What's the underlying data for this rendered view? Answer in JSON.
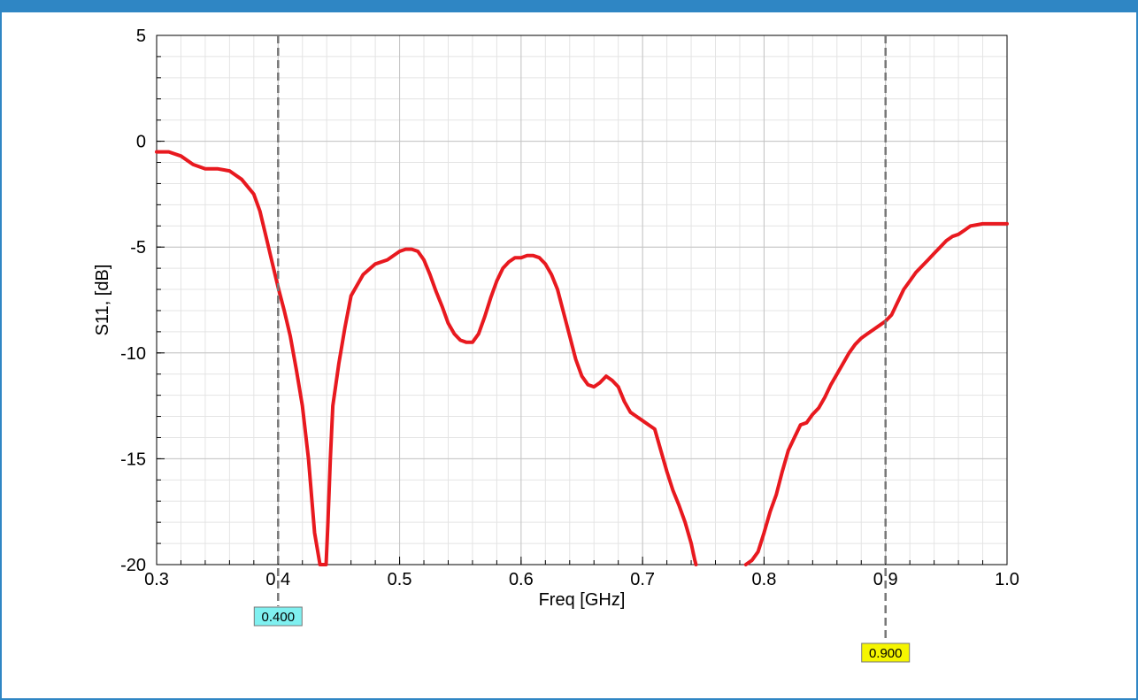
{
  "chart_data": {
    "type": "line",
    "title": "",
    "xlabel": "Freq [GHz]",
    "ylabel": "S11, [dB]",
    "xlim": [
      0.3,
      1.0
    ],
    "ylim": [
      -20,
      5
    ],
    "xticks": [
      "0.3",
      "0.4",
      "0.5",
      "0.6",
      "0.7",
      "0.8",
      "0.9",
      "1.0"
    ],
    "xtick_values": [
      0.3,
      0.4,
      0.5,
      0.6,
      0.7,
      0.8,
      0.9,
      1.0
    ],
    "yticks": [
      "5",
      "0",
      "-5",
      "-10",
      "-15",
      "-20"
    ],
    "ytick_values": [
      5,
      0,
      -5,
      -10,
      -15,
      -20
    ],
    "grid": true,
    "series": [
      {
        "color": "#e8191f",
        "x": [
          0.3,
          0.31,
          0.32,
          0.33,
          0.34,
          0.35,
          0.36,
          0.37,
          0.38,
          0.385,
          0.39,
          0.395,
          0.4,
          0.405,
          0.41,
          0.415,
          0.42,
          0.425,
          0.43,
          0.4345,
          0.4395,
          0.441,
          0.443,
          0.445,
          0.45,
          0.455,
          0.46,
          0.47,
          0.48,
          0.49,
          0.5,
          0.505,
          0.51,
          0.515,
          0.52,
          0.525,
          0.53,
          0.535,
          0.54,
          0.545,
          0.55,
          0.555,
          0.56,
          0.565,
          0.57,
          0.575,
          0.58,
          0.585,
          0.59,
          0.595,
          0.6,
          0.605,
          0.61,
          0.615,
          0.62,
          0.625,
          0.63,
          0.635,
          0.64,
          0.645,
          0.65,
          0.655,
          0.66,
          0.665,
          0.67,
          0.675,
          0.68,
          0.685,
          0.69,
          0.695,
          0.7,
          0.705,
          0.71,
          0.715,
          0.72,
          0.725,
          0.73,
          0.735,
          0.74,
          0.743,
          0.744
        ],
        "y": [
          -0.5,
          -0.5,
          -0.7,
          -1.1,
          -1.3,
          -1.3,
          -1.4,
          -1.8,
          -2.5,
          -3.3,
          -4.5,
          -5.7,
          -6.9,
          -8.0,
          -9.2,
          -10.8,
          -12.5,
          -15.0,
          -18.5,
          -20,
          -20,
          -18.0,
          -15.0,
          -12.5,
          -10.5,
          -8.8,
          -7.3,
          -6.3,
          -5.8,
          -5.6,
          -5.2,
          -5.1,
          -5.1,
          -5.2,
          -5.6,
          -6.3,
          -7.1,
          -7.8,
          -8.6,
          -9.1,
          -9.4,
          -9.5,
          -9.5,
          -9.1,
          -8.3,
          -7.4,
          -6.6,
          -6.0,
          -5.7,
          -5.5,
          -5.5,
          -5.4,
          -5.4,
          -5.5,
          -5.8,
          -6.3,
          -7.0,
          -8.1,
          -9.2,
          -10.3,
          -11.1,
          -11.5,
          -11.6,
          -11.4,
          -11.1,
          -11.3,
          -11.6,
          -12.3,
          -12.8,
          -13.0,
          -13.2,
          -13.4,
          -13.6,
          -14.6,
          -15.6,
          -16.5,
          -17.2,
          -18.0,
          -19.0,
          -19.8,
          -20
        ]
      },
      {
        "color": "#e8191f",
        "x": [
          0.785,
          0.79,
          0.795,
          0.8,
          0.805,
          0.81,
          0.815,
          0.82,
          0.825,
          0.83,
          0.835,
          0.84,
          0.845,
          0.85,
          0.855,
          0.86,
          0.865,
          0.87,
          0.875,
          0.88,
          0.885,
          0.89,
          0.895,
          0.9,
          0.905,
          0.91,
          0.915,
          0.92,
          0.925,
          0.93,
          0.935,
          0.94,
          0.945,
          0.95,
          0.955,
          0.96,
          0.965,
          0.97,
          0.975,
          0.98,
          0.985,
          0.99,
          0.995,
          1.0
        ],
        "y": [
          -20,
          -19.8,
          -19.4,
          -18.5,
          -17.5,
          -16.7,
          -15.6,
          -14.6,
          -14.0,
          -13.4,
          -13.3,
          -12.9,
          -12.6,
          -12.1,
          -11.5,
          -11.0,
          -10.5,
          -10.0,
          -9.6,
          -9.3,
          -9.1,
          -8.9,
          -8.7,
          -8.5,
          -8.2,
          -7.6,
          -7.0,
          -6.6,
          -6.2,
          -5.9,
          -5.6,
          -5.3,
          -5.0,
          -4.7,
          -4.5,
          -4.4,
          -4.2,
          -4.0,
          -3.95,
          -3.9,
          -3.9,
          -3.9,
          -3.9,
          -3.9
        ]
      }
    ],
    "markers": [
      {
        "x": 0.4,
        "label": "0.400",
        "color": "#7ff0f0"
      },
      {
        "x": 0.9,
        "label": "0.900",
        "color": "#f5f500"
      }
    ]
  }
}
